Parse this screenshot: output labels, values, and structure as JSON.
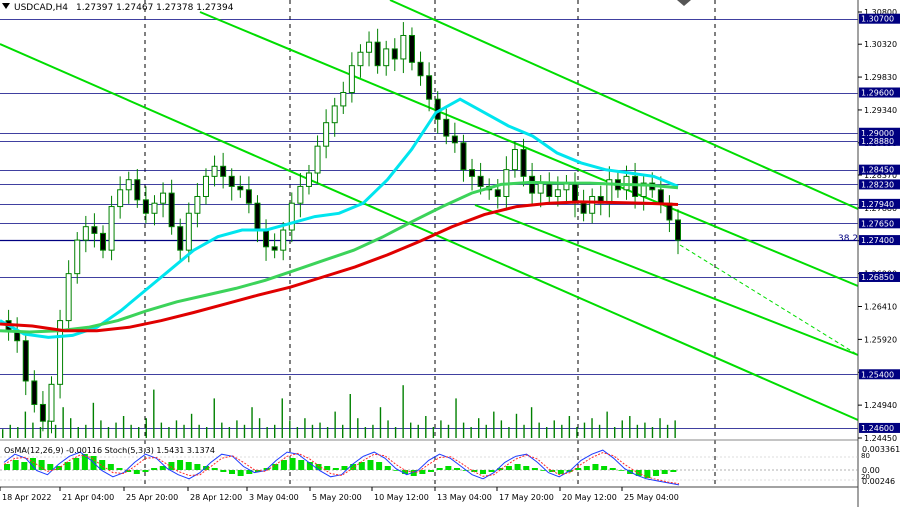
{
  "header": {
    "symbol": "USDCAD,H4",
    "ohlc": "1.27397 1.27467 1.27378 1.27394",
    "indicator_label": "OsMA(12,26,9) -0.00116 Stoch(5,3,3) 1.5431 3.1374"
  },
  "fib_label": "38.2",
  "colors": {
    "background": "#ffffff",
    "candles": "#008000",
    "ma_fast": "#00e5ee",
    "ma_mid": "#3cd35a",
    "ma_slow": "#e00000",
    "channel": "#00dd00",
    "level_line": "#000080",
    "price_tag_bg": "#000080"
  },
  "price_axis": {
    "ticks": [
      "1.30800",
      "1.30320",
      "1.29830",
      "1.29340",
      "1.28850",
      "1.28370",
      "1.27880",
      "1.27390",
      "1.26900",
      "1.26410",
      "1.25920",
      "1.25430",
      "1.24940",
      "1.24450"
    ],
    "tags": [
      "1.30700",
      "1.29600",
      "1.29000",
      "1.28880",
      "1.28450",
      "1.28230",
      "1.27940",
      "1.27650",
      "1.27400",
      "1.26850",
      "1.25400",
      "1.24600"
    ],
    "current_price": "1.27394"
  },
  "indicator_axis": {
    "ticks": [
      "0.0033619",
      "0.00",
      "0.00246"
    ],
    "stoch_levels": [
      "80",
      "20"
    ]
  },
  "time_axis": {
    "labels": [
      "18 Apr 2022",
      "21 Apr 04:00",
      "25 Apr 20:00",
      "28 Apr 12:00",
      "3 May 04:00",
      "5 May 20:00",
      "10 May 12:00",
      "13 May 04:00",
      "17 May 20:00",
      "20 May 12:00",
      "25 May 04:00"
    ]
  },
  "chart_data": {
    "type": "candlestick",
    "title": "USDCAD,H4",
    "ylim": [
      1.2445,
      1.308
    ],
    "horizontal_levels": [
      1.307,
      1.296,
      1.29,
      1.2888,
      1.2845,
      1.2823,
      1.2794,
      1.2765,
      1.274,
      1.2685,
      1.254,
      1.246
    ],
    "close_path": [
      1.262,
      1.2605,
      1.259,
      1.253,
      1.2495,
      1.247,
      1.2525,
      1.262,
      1.269,
      1.274,
      1.276,
      1.275,
      1.2725,
      1.279,
      1.2815,
      1.283,
      1.28,
      1.278,
      1.2795,
      1.281,
      1.276,
      1.2725,
      1.278,
      1.2805,
      1.2835,
      1.285,
      1.2835,
      1.282,
      1.2815,
      1.2795,
      1.2755,
      1.273,
      1.2725,
      1.2755,
      1.2795,
      1.282,
      1.284,
      1.288,
      1.2915,
      1.294,
      1.296,
      1.3,
      1.302,
      1.3035,
      1.3,
      1.3025,
      1.301,
      1.3045,
      1.3005,
      1.2985,
      1.295,
      1.292,
      1.2895,
      1.2885,
      1.2845,
      1.2835,
      1.282,
      1.2815,
      1.2805,
      1.2845,
      1.2875,
      1.2835,
      1.281,
      1.2825,
      1.2805,
      1.2815,
      1.2825,
      1.2795,
      1.278,
      1.2805,
      1.2795,
      1.283,
      1.2815,
      1.2835,
      1.2805,
      1.2825,
      1.2815,
      1.2795,
      1.277,
      1.274
    ],
    "series": [
      {
        "name": "MA fast (cyan)",
        "values": [
          1.262,
          1.26,
          1.2595,
          1.2598,
          1.261,
          1.2635,
          1.2665,
          1.2695,
          1.2725,
          1.2745,
          1.2755,
          1.2755,
          1.2765,
          1.2775,
          1.278,
          1.2795,
          1.283,
          1.2875,
          1.293,
          1.295,
          1.293,
          1.291,
          1.2895,
          1.287,
          1.2855,
          1.2845,
          1.284,
          1.2835,
          1.282
        ]
      },
      {
        "name": "MA mid (green)",
        "values": [
          1.2605,
          1.2603,
          1.2605,
          1.261,
          1.262,
          1.2635,
          1.2648,
          1.2658,
          1.2668,
          1.268,
          1.2695,
          1.271,
          1.2725,
          1.2745,
          1.2768,
          1.279,
          1.281,
          1.2823,
          1.2826,
          1.2825,
          1.2825,
          1.2823,
          1.2822,
          1.2818
        ]
      },
      {
        "name": "MA slow (red)",
        "values": [
          1.2615,
          1.2612,
          1.2605,
          1.2605,
          1.261,
          1.262,
          1.2632,
          1.2645,
          1.2658,
          1.267,
          1.2685,
          1.27,
          1.2718,
          1.2738,
          1.276,
          1.2778,
          1.279,
          1.2795,
          1.2797,
          1.2796,
          1.2795,
          1.2793
        ]
      }
    ],
    "volume": [
      4,
      6,
      5,
      12,
      7,
      5,
      8,
      6,
      14,
      9,
      5,
      6,
      16,
      8,
      5,
      7,
      10,
      6,
      5,
      9,
      22,
      7,
      5,
      8,
      6,
      11,
      6,
      5,
      18,
      7,
      5,
      8,
      6,
      14,
      9,
      5,
      6,
      18,
      8,
      5,
      9,
      6,
      7,
      5,
      12,
      6,
      20,
      9,
      5,
      6,
      14,
      8,
      5,
      24,
      7,
      6,
      10,
      5,
      8,
      6,
      18,
      7,
      5,
      9,
      6,
      12,
      8,
      5,
      11,
      6,
      14,
      7,
      5,
      8,
      6,
      10,
      5,
      7,
      9,
      6,
      12,
      5,
      8,
      10,
      6,
      7,
      5,
      9,
      6,
      8
    ],
    "osma": [
      3,
      5,
      4,
      6,
      5,
      3,
      2,
      4,
      6,
      8,
      7,
      5,
      3,
      1,
      -1,
      -2,
      -1,
      1,
      2,
      4,
      5,
      4,
      3,
      2,
      1,
      -1,
      -2,
      -3,
      -2,
      -1,
      1,
      3,
      5,
      6,
      5,
      4,
      3,
      2,
      1,
      2,
      3,
      4,
      5,
      4,
      2,
      0,
      -2,
      -3,
      -2,
      -1,
      1,
      2,
      1,
      0,
      -1,
      -2,
      -1,
      1,
      2,
      3,
      2,
      1,
      0,
      -1,
      -2,
      -1,
      1,
      2,
      3,
      2,
      1,
      0,
      -2,
      -3,
      -4,
      -3,
      -2,
      -1
    ],
    "stoch_main": [
      60,
      80,
      70,
      40,
      30,
      55,
      75,
      85,
      65,
      40,
      25,
      35,
      60,
      80,
      70,
      45,
      30,
      20,
      35,
      60,
      80,
      75,
      50,
      35,
      40,
      65,
      85,
      80,
      60,
      40,
      25,
      30,
      55,
      75,
      85,
      70,
      45,
      30,
      40,
      65,
      80,
      70,
      50,
      30,
      20,
      35,
      60,
      75,
      80,
      60,
      35,
      25,
      40,
      65,
      80,
      90,
      70,
      45,
      30,
      20,
      15,
      10,
      5
    ],
    "stoch_signal": [
      55,
      70,
      72,
      55,
      38,
      45,
      65,
      78,
      72,
      52,
      35,
      33,
      50,
      70,
      72,
      55,
      38,
      28,
      30,
      50,
      70,
      76,
      60,
      42,
      38,
      55,
      75,
      82,
      70,
      50,
      33,
      28,
      45,
      65,
      80,
      76,
      55,
      38,
      36,
      55,
      72,
      74,
      58,
      40,
      26,
      30,
      50,
      68,
      78,
      68,
      45,
      30,
      35,
      55,
      72,
      84,
      76,
      55,
      38,
      25,
      18,
      12,
      8
    ]
  }
}
